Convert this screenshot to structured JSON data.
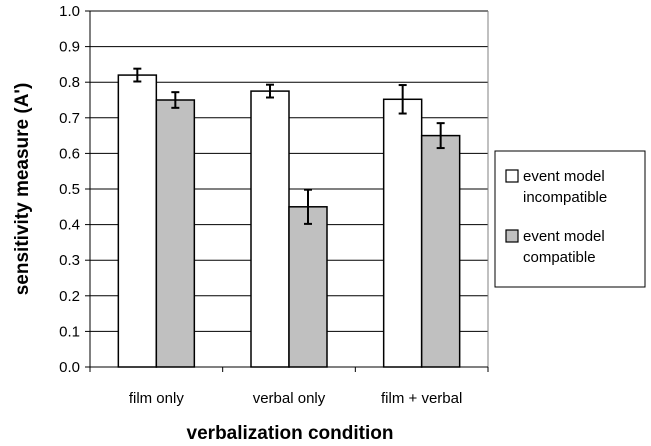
{
  "chart_data": {
    "type": "bar",
    "categories": [
      "film only",
      "verbal only",
      "film + verbal"
    ],
    "series": [
      {
        "name": "event model incompatible",
        "legend_lines": [
          "event model",
          "incompatible"
        ],
        "color": "#ffffff",
        "values": [
          0.82,
          0.775,
          0.752
        ],
        "error": [
          0.018,
          0.018,
          0.04
        ]
      },
      {
        "name": "event model compatible",
        "legend_lines": [
          "event model",
          "compatible"
        ],
        "color": "#c0c0c0",
        "values": [
          0.75,
          0.45,
          0.65
        ],
        "error": [
          0.022,
          0.048,
          0.035
        ]
      }
    ],
    "xlabel": "verbalization condition",
    "ylabel": "sensitivity measure (A')",
    "ylim": [
      0,
      1.0
    ],
    "yticks": [
      "0.0",
      "0.1",
      "0.2",
      "0.3",
      "0.4",
      "0.5",
      "0.6",
      "0.7",
      "0.8",
      "0.9",
      "1.0"
    ],
    "grid": true,
    "legend_position": "right"
  }
}
